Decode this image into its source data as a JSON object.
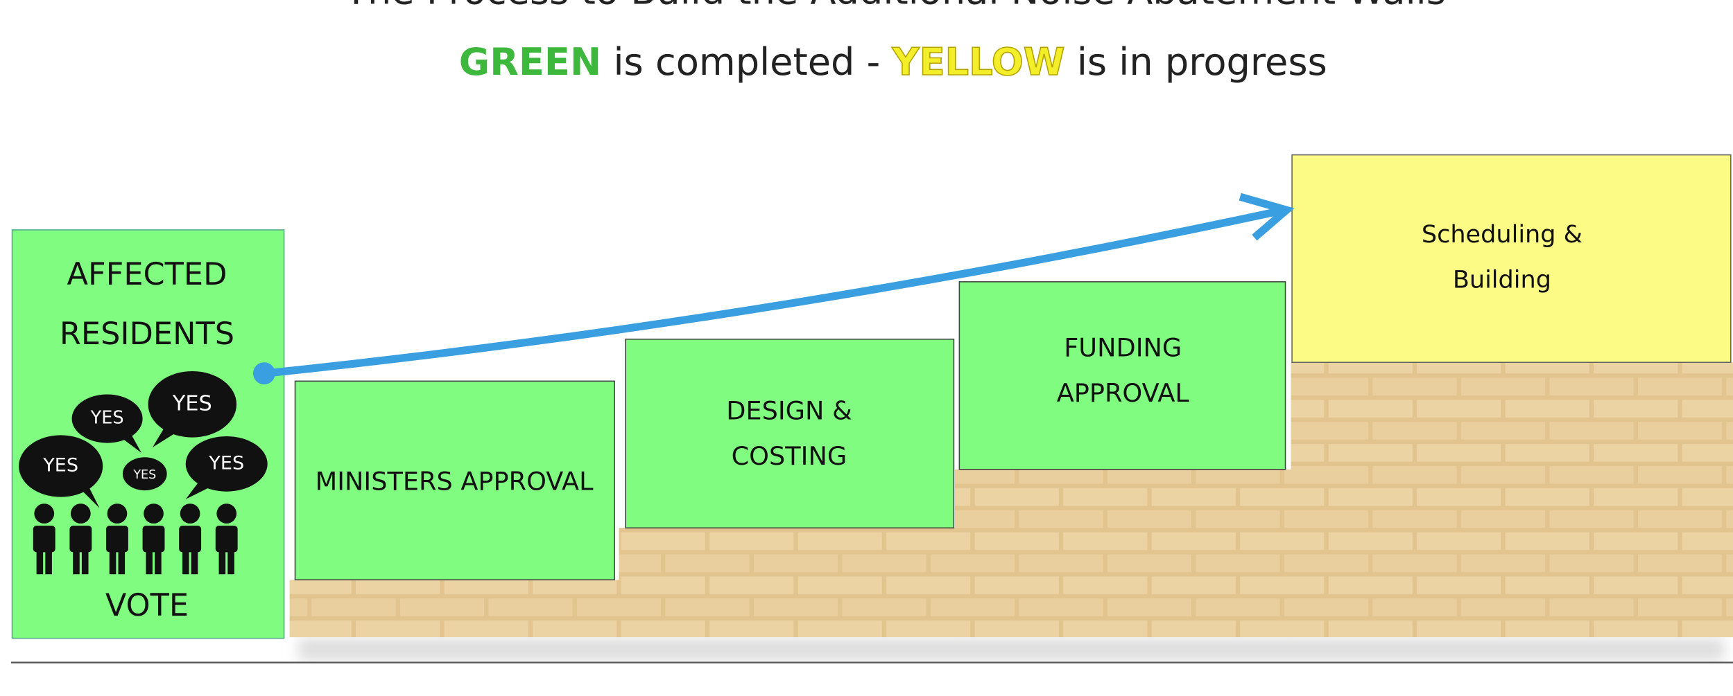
{
  "header": {
    "title": "The Process to Build the Additional Noise Abatement Walls",
    "legend": {
      "green": "GREEN",
      "middle": "is completed -",
      "yellow": "YELLOW",
      "end": "is in progress"
    }
  },
  "steps": [
    {
      "lines": [
        "AFFECTED",
        "RESIDENTS"
      ],
      "footer": "VOTE",
      "bubbles": [
        "YES",
        "YES",
        "YES",
        "YES",
        "YES"
      ]
    },
    {
      "lines": [
        "MINISTERS APPROVAL"
      ]
    },
    {
      "lines": [
        "DESIGN &",
        "COSTING"
      ]
    },
    {
      "lines": [
        "FUNDING",
        "APPROVAL"
      ]
    },
    {
      "lines": [
        "Scheduling &",
        "Building"
      ]
    }
  ]
}
